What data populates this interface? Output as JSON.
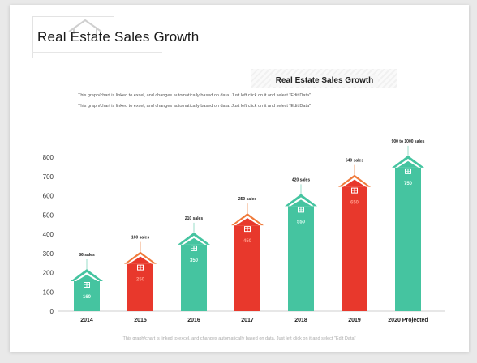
{
  "page": {
    "title": "Real Estate Sales Growth",
    "note_line_1": "This graph/chart is linked to excel, and changes automatically based on data. Just left click on it and select \"Edit Data\"",
    "note_line_2": "This graph/chart is linked to excel, and changes automatically based on data. Just left click on it and select \"Edit Data\"",
    "footer_note": "This graph/chart is linked to excel, and changes automatically based on data. Just left click on it and select \"Edit Data\""
  },
  "colors": {
    "teal": "#45c4a0",
    "red": "#e8382c",
    "red_roof_inner": "#f07a3a",
    "axis": "#cfcfcf"
  },
  "icons": {
    "logo": "house-outline-icon",
    "bar_top": "house-icon"
  },
  "chart_data": {
    "type": "bar",
    "title": "Real Estate Sales Growth",
    "categories": [
      "2014",
      "2015",
      "2016",
      "2017",
      "2018",
      "2019",
      "2020 Projected"
    ],
    "values": [
      160,
      250,
      350,
      450,
      550,
      650,
      750
    ],
    "value_labels": [
      "160",
      "250",
      "350",
      "450",
      "550",
      "650",
      "750"
    ],
    "annotations": [
      "86 sales",
      "160 sales",
      "210 sales",
      "250 sales",
      "420 sales",
      "640 sales",
      "900 to 1000 sales"
    ],
    "bar_colors": [
      "teal",
      "red",
      "teal",
      "red",
      "teal",
      "red",
      "teal"
    ],
    "ylim": [
      0,
      800
    ],
    "yticks": [
      0,
      100,
      200,
      300,
      400,
      500,
      600,
      700,
      800
    ],
    "xlabel": "",
    "ylabel": "",
    "grid": false,
    "legend": "none"
  }
}
